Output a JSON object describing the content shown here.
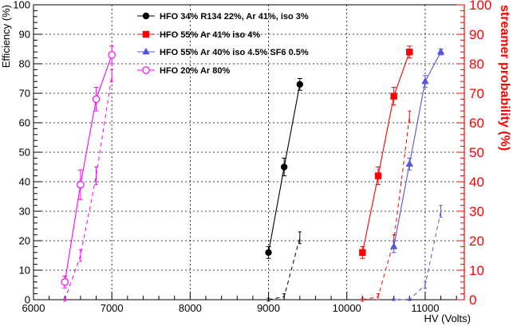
{
  "chart_data": {
    "type": "line",
    "xlabel": "HV (Volts)",
    "ylabel_left": "Efficiency (%)",
    "ylabel_right": "streamer probability (%)",
    "xlim": [
      6000,
      11500
    ],
    "ylim": [
      0,
      100
    ],
    "x_ticks": [
      6000,
      7000,
      8000,
      9000,
      10000,
      11000
    ],
    "y_ticks": [
      0,
      10,
      20,
      30,
      40,
      50,
      60,
      70,
      80,
      90,
      100
    ],
    "x_tick_labels": [
      "6000",
      "7000",
      "8000",
      "9000",
      "10000",
      "11000"
    ],
    "y_tick_labels": [
      "0",
      "10",
      "20",
      "30",
      "40",
      "50",
      "60",
      "70",
      "80",
      "90",
      "100"
    ],
    "grid": true,
    "legend_position": "top-center",
    "series": [
      {
        "name": "HFO 34% R134 22%, Ar 41%, iso 3%",
        "color": "#000000",
        "marker": "circle-filled",
        "efficiency": {
          "x": [
            9000,
            9200,
            9400
          ],
          "y": [
            16,
            45,
            73
          ],
          "err": [
            2,
            3,
            2
          ]
        },
        "streamer": {
          "x": [
            9000,
            9200,
            9400
          ],
          "y": [
            0,
            1,
            21
          ],
          "err": [
            0.5,
            1,
            2
          ]
        }
      },
      {
        "name": "HFO 55% Ar 41% iso 4%",
        "color": "#ff0000",
        "marker": "square-filled",
        "efficiency": {
          "x": [
            10200,
            10400,
            10600,
            10800
          ],
          "y": [
            16,
            42,
            69,
            84
          ],
          "err": [
            2,
            3,
            3,
            2
          ]
        },
        "streamer": {
          "x": [
            10200,
            10400,
            10600,
            10800
          ],
          "y": [
            0,
            1,
            20,
            62
          ],
          "err": [
            0.5,
            1,
            2,
            2
          ]
        }
      },
      {
        "name": "HFO 55% Ar 40% iso 4.5% SF6 0.5%",
        "color": "#5555dd",
        "marker": "triangle-filled",
        "efficiency": {
          "x": [
            10600,
            10800,
            11000,
            11200
          ],
          "y": [
            18,
            46,
            74,
            84
          ],
          "err": [
            2,
            2,
            2,
            1
          ]
        },
        "streamer": {
          "x": [
            10600,
            10800,
            11000,
            11200
          ],
          "y": [
            0,
            0,
            5,
            30
          ],
          "err": [
            0.3,
            0.3,
            1,
            2
          ]
        }
      },
      {
        "name": "HFO 20% Ar 80%",
        "color": "#ff00ff",
        "marker": "circle-open",
        "efficiency": {
          "x": [
            6400,
            6600,
            6800,
            7000
          ],
          "y": [
            6,
            39,
            68,
            83
          ],
          "err": [
            2,
            5,
            4,
            3
          ]
        },
        "streamer": {
          "x": [
            6400,
            6600,
            6800,
            7000
          ],
          "y": [
            0,
            15,
            42,
            76
          ],
          "err": [
            0.5,
            2,
            3,
            2
          ]
        }
      }
    ]
  }
}
